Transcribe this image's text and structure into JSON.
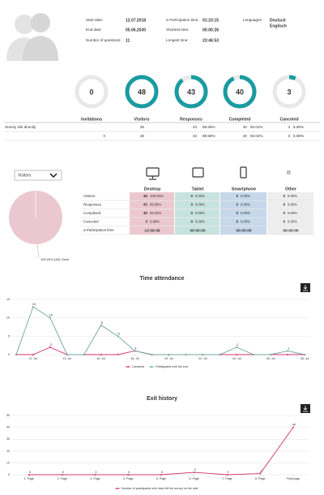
{
  "header": {
    "fields": [
      [
        "Start date:",
        "12.07.2018"
      ],
      [
        "End date:",
        "05.06.2030"
      ],
      [
        "Number of questions:",
        "11"
      ],
      [
        "ø Participation time:",
        "01:23:15"
      ],
      [
        "Shortest time:",
        "00:00:26"
      ],
      [
        "Longest time:",
        "23:46:53"
      ]
    ],
    "languages_label": "Languages:",
    "languages": [
      "Deutsch",
      "Englisch"
    ]
  },
  "kpis": [
    {
      "label": "Invitations",
      "value": 0
    },
    {
      "label": "Visitors",
      "value": 48
    },
    {
      "label": "Responses",
      "value": 43
    },
    {
      "label": "Completed",
      "value": 40
    },
    {
      "label": "Canceled",
      "value": 3
    }
  ],
  "overview": {
    "rows": [
      [
        "Survey link directly",
        "48",
        "43",
        "89.58%",
        "40",
        "93.02%",
        "3",
        "6.98%"
      ],
      [
        "0",
        "48",
        "43",
        "89.58%",
        "40",
        "93.02%",
        "3",
        "6.98%"
      ]
    ]
  },
  "devices": {
    "select": "Visitors",
    "columns": [
      "Desktop",
      "Tablet",
      "Smartphone",
      "Other"
    ],
    "rows": [
      {
        "label": "Visitors",
        "cells": [
          [
            "48",
            "100.00%"
          ],
          [
            "0",
            "0.00%"
          ],
          [
            "0",
            "0.00%"
          ],
          [
            "0",
            "0.00%"
          ]
        ]
      },
      {
        "label": "Responses",
        "cells": [
          [
            "43",
            "89.58%"
          ],
          [
            "0",
            "0.00%"
          ],
          [
            "0",
            "0.00%"
          ],
          [
            "0",
            "0.00%"
          ]
        ]
      },
      {
        "label": "Completed",
        "cells": [
          [
            "40",
            "93.02%"
          ],
          [
            "0",
            "0.00%"
          ],
          [
            "0",
            "0.00%"
          ],
          [
            "0",
            "0.00%"
          ]
        ]
      },
      {
        "label": "Canceled",
        "cells": [
          [
            "3",
            "6.98%"
          ],
          [
            "0",
            "0.00%"
          ],
          [
            "0",
            "0.00%"
          ],
          [
            "0",
            "0.00%"
          ]
        ]
      },
      {
        "label": "ø Participation time",
        "cells": [
          [
            "13:09:36"
          ],
          [
            "00:00:00"
          ],
          [
            "00:00:00"
          ],
          [
            "00:00:00"
          ]
        ]
      }
    ]
  },
  "chart_data": [
    {
      "type": "pie",
      "values": [
        100
      ],
      "value_labels": [
        "100.00% (48): Desk"
      ],
      "color": "#ebc8cf"
    },
    {
      "type": "line",
      "title": "Time attendance",
      "categories": [
        null,
        "12. Jul",
        null,
        "14. Jul",
        null,
        "16. Jul",
        null,
        "18. Jul",
        null,
        "20. Jul",
        null,
        "22. Jul",
        null,
        "24. Jul",
        null,
        "26. Jul",
        null,
        "28. Jul"
      ],
      "series": [
        {
          "name": "Canceled",
          "color": "#d6336c",
          "values": [
            0,
            0,
            2,
            0,
            0,
            0,
            0,
            1,
            0,
            0,
            0,
            0,
            0,
            0,
            0,
            0,
            0,
            0
          ]
        },
        {
          "name": "Participated until the end",
          "color": "#6fa3a0",
          "values": [
            0,
            13,
            10,
            0,
            0,
            8,
            5,
            1,
            0,
            0,
            0,
            0,
            0,
            2,
            0,
            0,
            1,
            0
          ]
        }
      ],
      "ylim": [
        0,
        15
      ],
      "yticks": [
        0,
        5,
        10,
        15
      ],
      "grid": true,
      "legend": "bottom"
    },
    {
      "type": "line",
      "title": "Exit history",
      "categories": [
        "1. Page",
        "2. Page",
        "3. Page",
        "4. Page",
        "5. Page",
        "6. Page",
        "7. Page",
        "8. Page",
        "Final page"
      ],
      "series": [
        {
          "name": "Number of participants who have left the survey on the side",
          "color": "#d6336c",
          "values": [
            0,
            0,
            0,
            0,
            0,
            2,
            0,
            1,
            40
          ]
        }
      ],
      "ylim": [
        0,
        50
      ],
      "yticks": [
        0,
        10,
        20,
        30,
        40,
        50
      ],
      "grid": true,
      "legend": "bottom"
    }
  ]
}
